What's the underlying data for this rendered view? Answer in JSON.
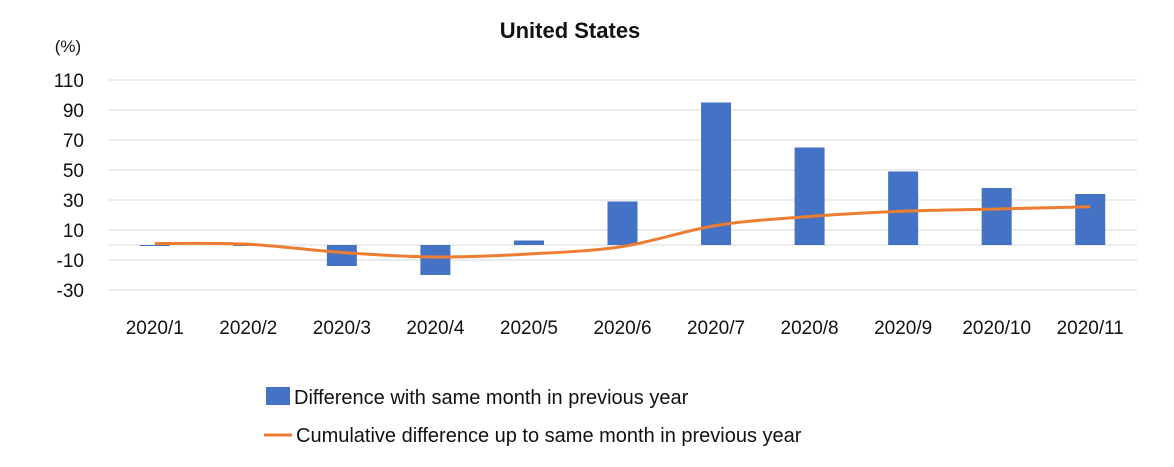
{
  "chart_data": {
    "type": "bar",
    "title": "United States",
    "ylabel": "(%)",
    "xlabel": "",
    "categories": [
      "2020/1",
      "2020/2",
      "2020/3",
      "2020/4",
      "2020/5",
      "2020/6",
      "2020/7",
      "2020/8",
      "2020/9",
      "2020/10",
      "2020/11"
    ],
    "y_ticks": [
      110,
      90,
      70,
      50,
      30,
      10,
      -10,
      -30
    ],
    "ylim": [
      -30,
      110
    ],
    "grid": true,
    "legend_position": "bottom",
    "series": [
      {
        "name": "Difference with same month in previous year",
        "type": "bar",
        "color": "#4472C4",
        "values": [
          -0.5,
          0,
          -14,
          -20,
          3,
          29,
          95,
          65,
          49,
          38,
          34
        ]
      },
      {
        "name": "Cumulative difference up to same month in previous year",
        "type": "line",
        "color": "#ED7D31",
        "values": [
          1,
          0.5,
          -5,
          -8,
          -6,
          -1,
          13,
          19,
          22.5,
          24,
          25.5
        ]
      }
    ]
  }
}
